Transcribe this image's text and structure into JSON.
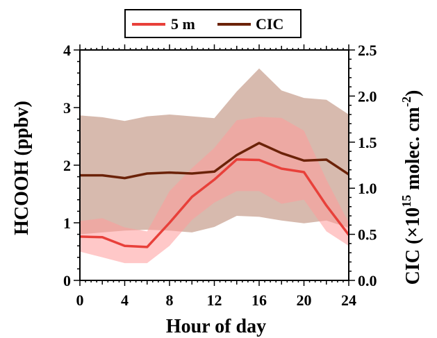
{
  "chart_data": {
    "type": "line",
    "xlabel": "Hour of day",
    "ylabel_left": "HCOOH (ppbv)",
    "ylabel_right_parts": [
      "CIC (×10",
      "15",
      " molec. cm",
      "-2",
      ")"
    ],
    "x_ticks": [
      0,
      4,
      8,
      12,
      16,
      20,
      24
    ],
    "x_minor_ticks": [
      2,
      6,
      10,
      14,
      18,
      22
    ],
    "xlim": [
      0,
      24
    ],
    "ylim_left": [
      0,
      4
    ],
    "y_left_ticks": [
      0,
      1,
      2,
      3,
      4
    ],
    "ylim_right": [
      0.0,
      2.5
    ],
    "y_right_ticks": [
      0.0,
      0.5,
      1.0,
      1.5,
      2.0,
      2.5
    ],
    "y_right_tick_labels": [
      "0.0",
      "0.5",
      "1.0",
      "1.5",
      "2.0",
      "2.5"
    ],
    "legend": {
      "placement": "top-center",
      "entries": [
        "5 m",
        "CIC"
      ]
    },
    "series": [
      {
        "name": "5 m",
        "axis": "left",
        "color": "#e8403a",
        "band_color": "#ff9a9a",
        "x": [
          0,
          2,
          4,
          6,
          8,
          10,
          12,
          14,
          16,
          18,
          20,
          22,
          24
        ],
        "values": [
          0.76,
          0.75,
          0.6,
          0.58,
          1.0,
          1.45,
          1.75,
          2.1,
          2.09,
          1.94,
          1.88,
          1.3,
          0.79
        ],
        "lower": [
          0.5,
          0.4,
          0.3,
          0.3,
          0.6,
          1.05,
          1.35,
          1.55,
          1.55,
          1.33,
          1.4,
          0.85,
          0.6
        ],
        "upper": [
          1.03,
          1.08,
          0.92,
          0.85,
          1.55,
          1.95,
          2.3,
          2.78,
          2.84,
          2.82,
          2.6,
          1.75,
          1.0
        ]
      },
      {
        "name": "CIC",
        "axis": "right",
        "color": "#6b2208",
        "band_color": "#c9a393",
        "x": [
          0,
          2,
          4,
          6,
          8,
          10,
          12,
          14,
          16,
          18,
          20,
          22,
          24
        ],
        "values": [
          1.14,
          1.14,
          1.11,
          1.16,
          1.17,
          1.16,
          1.18,
          1.36,
          1.49,
          1.38,
          1.3,
          1.31,
          1.15
        ],
        "lower": [
          0.5,
          0.52,
          0.54,
          0.55,
          0.54,
          0.52,
          0.58,
          0.7,
          0.69,
          0.65,
          0.62,
          0.65,
          0.57
        ],
        "upper": [
          1.79,
          1.77,
          1.73,
          1.78,
          1.8,
          1.78,
          1.76,
          2.05,
          2.3,
          2.06,
          1.98,
          1.96,
          1.8
        ]
      }
    ]
  }
}
